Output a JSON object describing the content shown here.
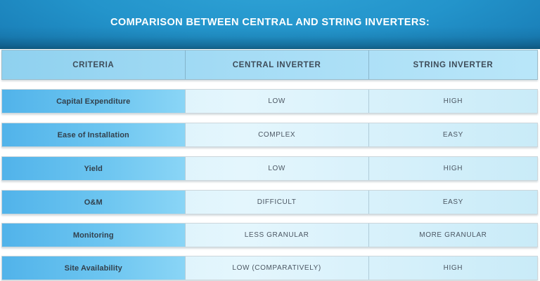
{
  "chart_data": {
    "type": "table",
    "title": "COMPARISON BETWEEN CENTRAL AND STRING INVERTERS:",
    "columns": [
      "CRITERIA",
      "CENTRAL INVERTER",
      "STRING INVERTER"
    ],
    "rows": [
      [
        "Capital Expenditure",
        "LOW",
        "HIGH"
      ],
      [
        "Ease of Installation",
        "COMPLEX",
        "EASY"
      ],
      [
        "Yield",
        "LOW",
        "HIGH"
      ],
      [
        "O&M",
        "DIFFICULT",
        "EASY"
      ],
      [
        "Monitoring",
        "LESS GRANULAR",
        "MORE GRANULAR"
      ],
      [
        "Site Availability",
        "LOW (COMPARATIVELY)",
        "HIGH"
      ]
    ]
  },
  "colors": {
    "banner_blue": "#2394cb",
    "banner_dark_edge": "#13699a",
    "header_row_start": "#8fd1ef",
    "header_row_end": "#b9e6f9",
    "criteria_cell_start": "#51b3ea",
    "criteria_cell_end": "#8ad5f6",
    "value_cell": "#d9f1fb",
    "title_text": "#ffffff",
    "cell_text_dark": "#32404c",
    "value_text": "#4b5662"
  }
}
